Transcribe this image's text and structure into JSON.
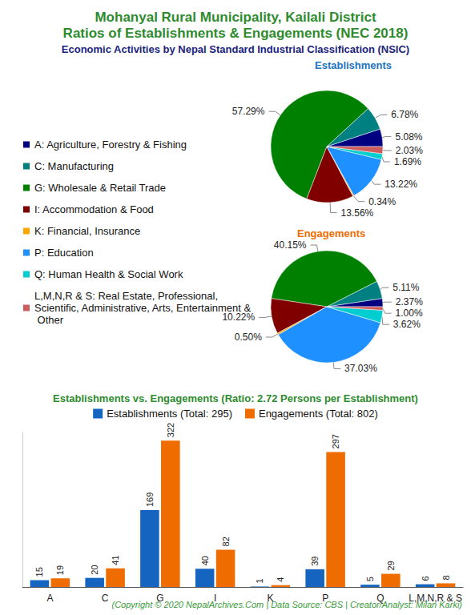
{
  "title": "Mohanyal Rural Municipality, Kailali District\nRatios of Establishments & Engagements (NEC 2018)",
  "subtitle": "Economic Activities by Nepal Standard Industrial Classification (NSIC)",
  "footer": "(Copyright © 2020 NepalArchives.Com | Data Source: CBS | Creator/Analyst: Milan Karki)",
  "chart_data": [
    {
      "type": "pie",
      "title": "Establishments",
      "categories": [
        "A: Agriculture, Forestry & Fishing",
        "C: Manufacturing",
        "G: Wholesale & Retail Trade",
        "I: Accommodation & Food",
        "K: Financial, Insurance",
        "P: Education",
        "Q: Human Health & Social Work",
        "L,M,N,R & S: Real Estate, Professional, Scientific, Administrative, Arts, Entertainment & Other"
      ],
      "values": [
        5.08,
        6.78,
        57.29,
        13.56,
        0.34,
        13.22,
        1.69,
        2.03
      ],
      "value_labels": [
        "5.08%",
        "6.78%",
        "57.29%",
        "13.56%",
        "0.34%",
        "13.22%",
        "1.69%",
        "2.03%"
      ],
      "colors": [
        "#000080",
        "#008080",
        "#008000",
        "#800000",
        "#FFA500",
        "#1E90FF",
        "#00CED1",
        "#CD5C5C"
      ],
      "data_labels": true,
      "legend": "left"
    },
    {
      "type": "pie",
      "title": "Engagements",
      "categories": [
        "A: Agriculture, Forestry & Fishing",
        "C: Manufacturing",
        "G: Wholesale & Retail Trade",
        "I: Accommodation & Food",
        "K: Financial, Insurance",
        "P: Education",
        "Q: Human Health & Social Work",
        "L,M,N,R & S: Real Estate, Professional, Scientific, Administrative, Arts, Entertainment & Other"
      ],
      "values": [
        2.37,
        5.11,
        40.15,
        10.22,
        0.5,
        37.03,
        3.62,
        1.0
      ],
      "value_labels": [
        "2.37%",
        "5.11%",
        "40.15%",
        "10.22%",
        "0.50%",
        "37.03%",
        "3.62%",
        "1.00%"
      ],
      "colors": [
        "#000080",
        "#008080",
        "#008000",
        "#800000",
        "#FFA500",
        "#1E90FF",
        "#00CED1",
        "#CD5C5C"
      ],
      "data_labels": true
    },
    {
      "type": "bar",
      "title": "Establishments vs. Engagements (Ratio: 2.72 Persons per Establishment)",
      "categories": [
        "A",
        "C",
        "G",
        "I",
        "K",
        "P",
        "Q",
        "L,M,N,R & S"
      ],
      "series": [
        {
          "name": "Establishments (Total: 295)",
          "color": "#1565C0",
          "values": [
            15,
            20,
            169,
            40,
            1,
            39,
            5,
            6
          ]
        },
        {
          "name": "Engagements (Total: 802)",
          "color": "#EF6C00",
          "values": [
            19,
            41,
            322,
            82,
            4,
            297,
            29,
            8
          ]
        }
      ],
      "ylim": [
        0,
        340
      ],
      "data_labels": true,
      "tick_labels": "x",
      "grid": false,
      "legend": "top"
    }
  ]
}
